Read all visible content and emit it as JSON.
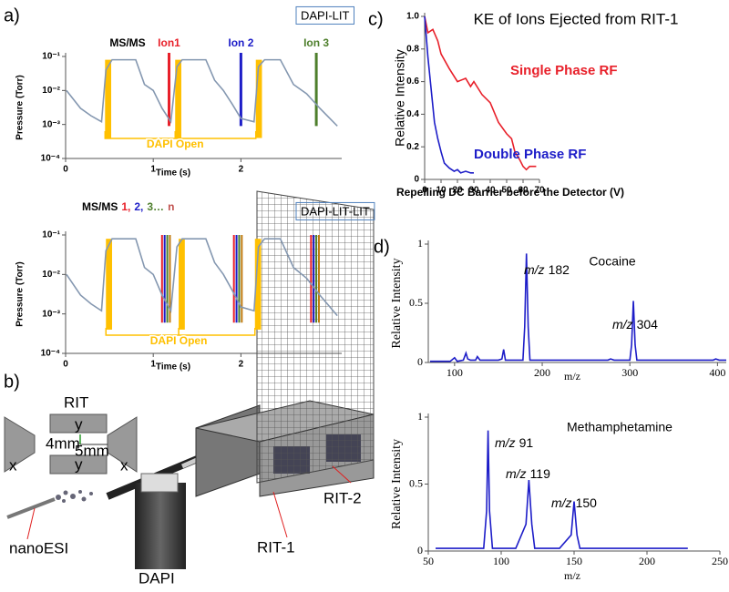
{
  "chart_data": [
    {
      "type": "line",
      "panel": "a)",
      "badge": "DAPI-LIT",
      "annotation": "MS/MS",
      "xlabel": "Time (s)",
      "ylabel": "Pressure (Torr)",
      "log_y": true,
      "xlim": [
        0,
        3.15
      ],
      "xticks": [
        0,
        1,
        2
      ],
      "ylim": [
        0.0001,
        0.1
      ],
      "yticks": [
        {
          "value": 0.0001,
          "label": "10⁻⁴"
        },
        {
          "value": 0.001,
          "label": "10⁻³"
        },
        {
          "value": 0.01,
          "label": "10⁻²"
        },
        {
          "value": 0.1,
          "label": "10⁻¹"
        }
      ],
      "color": "#8497b0",
      "x": [
        0.01,
        0.17,
        0.29,
        0.41,
        0.46,
        0.53,
        0.8,
        0.9,
        1.0,
        1.1,
        1.2,
        1.27,
        1.33,
        1.6,
        1.7,
        1.8,
        1.9,
        2.0,
        2.15,
        2.2,
        2.27,
        2.45,
        2.6,
        2.75,
        2.9,
        3.1
      ],
      "values": [
        0.01,
        0.003,
        0.0018,
        0.0012,
        0.04,
        0.08,
        0.08,
        0.015,
        0.01,
        0.003,
        0.0012,
        0.05,
        0.08,
        0.08,
        0.02,
        0.01,
        0.004,
        0.0015,
        0.0012,
        0.05,
        0.08,
        0.08,
        0.015,
        0.008,
        0.003,
        0.0009
      ],
      "pulses": {
        "label": "DAPI Open",
        "color": "#ffc000",
        "x": [
          0.45,
          1.25,
          2.17
        ],
        "width": 0.07
      },
      "markers": [
        {
          "name": "Ion1",
          "color": "#e8202a",
          "x": 1.18
        },
        {
          "name": "Ion 2",
          "color": "#1d1dc8",
          "x": 2.0
        },
        {
          "name": "Ion 3",
          "color": "#4e7f2c",
          "x": 2.86
        }
      ]
    },
    {
      "type": "line",
      "badge": "DAPI-LIT-LIT",
      "xlabel": "Time (s)",
      "ylabel": "Pressure (Torr)",
      "log_y": true,
      "xlim": [
        0,
        3.15
      ],
      "xticks": [
        0,
        1,
        2
      ],
      "ylim": [
        0.0001,
        0.1
      ],
      "yticks": [
        {
          "value": 0.0001,
          "label": "10⁻⁴"
        },
        {
          "value": 0.001,
          "label": "10⁻³"
        },
        {
          "value": 0.01,
          "label": "10⁻²"
        },
        {
          "value": 0.1,
          "label": "10⁻¹"
        }
      ],
      "color": "#8497b0",
      "x": [
        0.01,
        0.17,
        0.29,
        0.41,
        0.46,
        0.53,
        0.8,
        0.9,
        1.0,
        1.1,
        1.2,
        1.27,
        1.33,
        1.6,
        1.7,
        1.8,
        1.9,
        2.0,
        2.15,
        2.2,
        2.27,
        2.45,
        2.6,
        2.75,
        2.9,
        3.1
      ],
      "values": [
        0.01,
        0.003,
        0.0018,
        0.0012,
        0.04,
        0.08,
        0.08,
        0.015,
        0.01,
        0.003,
        0.0012,
        0.05,
        0.08,
        0.08,
        0.02,
        0.01,
        0.004,
        0.0015,
        0.0012,
        0.05,
        0.08,
        0.08,
        0.015,
        0.008,
        0.003,
        0.0009
      ],
      "pulses": {
        "label": "DAPI Open",
        "color": "#ffc000",
        "x": [
          0.46,
          1.29,
          2.16
        ],
        "width": 0.07
      },
      "label_parts": [
        {
          "text": "MS/MS",
          "color": "#000000"
        },
        {
          "text": "1,",
          "color": "#e8202a"
        },
        {
          "text": "2,",
          "color": "#1d1dc8"
        },
        {
          "text": "3…",
          "color": "#4e7f2c"
        },
        {
          "text": "n",
          "color": "#c0504d"
        }
      ],
      "marker_sets": [
        {
          "color": "#e8202a",
          "x": [
            1.1,
            1.92,
            2.8
          ]
        },
        {
          "color": "#1d1dc8",
          "x": [
            1.13,
            1.95,
            2.83
          ]
        },
        {
          "color": "#4e7f2c",
          "x": [
            1.16,
            1.98,
            2.86
          ]
        },
        {
          "color": "#c07a10",
          "x": [
            1.19,
            2.01,
            2.89
          ]
        }
      ]
    },
    {
      "type": "line",
      "panel": "c)",
      "title": "KE of Ions Ejected from RIT-1",
      "xlabel": "Repelling DC Barrier before the Detector (V)",
      "ylabel": "Relative Intensity",
      "xlim": [
        0,
        70
      ],
      "xticks": [
        0,
        10,
        20,
        30,
        40,
        50,
        60,
        70
      ],
      "ylim": [
        0,
        1
      ],
      "yticks": [
        0,
        0.2,
        0.4,
        0.6,
        0.8,
        {
          "value": 1,
          "label": "1.0"
        }
      ],
      "series": [
        {
          "name": "Single Phase RF",
          "color": "#e8202a",
          "x": [
            0,
            2,
            5,
            8,
            10,
            15,
            20,
            25,
            28,
            30,
            35,
            40,
            45,
            50,
            53,
            55,
            58,
            60,
            62,
            64,
            68
          ],
          "values": [
            1,
            0.9,
            0.92,
            0.85,
            0.77,
            0.68,
            0.6,
            0.62,
            0.57,
            0.6,
            0.52,
            0.47,
            0.35,
            0.28,
            0.25,
            0.17,
            0.12,
            0.08,
            0.06,
            0.08,
            0.08
          ]
        },
        {
          "name": "Double Phase RF",
          "color": "#1d1dc8",
          "x": [
            0,
            2,
            4,
            6,
            8,
            10,
            12,
            15,
            18,
            20,
            22,
            25,
            28,
            30
          ],
          "values": [
            1,
            0.75,
            0.55,
            0.35,
            0.25,
            0.17,
            0.1,
            0.07,
            0.05,
            0.06,
            0.04,
            0.05,
            0.04,
            0.04
          ]
        }
      ]
    },
    {
      "type": "line",
      "panel": "d)",
      "title": "Cocaine",
      "xlabel": "m/z",
      "ylabel": "Relative Intensity",
      "xlim": [
        70,
        410
      ],
      "xticks": [
        100,
        200,
        300,
        400
      ],
      "ylim": [
        0,
        1
      ],
      "yticks": [
        0,
        0.5,
        1
      ],
      "color": "#1d1dc8",
      "x": [
        72,
        95,
        100,
        103,
        110,
        113,
        115,
        118,
        124,
        126,
        129,
        135,
        150,
        154,
        156,
        158,
        165,
        178,
        180,
        182,
        184,
        186,
        200,
        240,
        275,
        278,
        282,
        300,
        302,
        304,
        306,
        308,
        330,
        395,
        398,
        402,
        410
      ],
      "values": [
        0.01,
        0.01,
        0.04,
        0.01,
        0.02,
        0.08,
        0.03,
        0.02,
        0.02,
        0.05,
        0.02,
        0.02,
        0.02,
        0.03,
        0.11,
        0.02,
        0.02,
        0.02,
        0.3,
        0.92,
        0.3,
        0.02,
        0.02,
        0.02,
        0.02,
        0.03,
        0.02,
        0.02,
        0.15,
        0.52,
        0.15,
        0.02,
        0.02,
        0.02,
        0.03,
        0.02,
        0.02
      ],
      "peak_labels": [
        {
          "unit": "m/z",
          "mz": 182
        },
        {
          "unit": "m/z",
          "mz": 304
        }
      ]
    },
    {
      "type": "line",
      "title": "Methamphetamine",
      "xlabel": "m/z",
      "ylabel": "Relative Intensity",
      "xlim": [
        50,
        250
      ],
      "xticks": [
        50,
        100,
        150,
        200,
        250
      ],
      "ylim": [
        0,
        1
      ],
      "yticks": [
        0,
        0.5,
        1
      ],
      "color": "#1d1dc8",
      "x": [
        55,
        70,
        88,
        90,
        91,
        92,
        94,
        110,
        117,
        119,
        121,
        123,
        140,
        148,
        150,
        152,
        154,
        175,
        200,
        228
      ],
      "values": [
        0.02,
        0.02,
        0.02,
        0.3,
        0.9,
        0.3,
        0.02,
        0.02,
        0.2,
        0.53,
        0.2,
        0.02,
        0.02,
        0.12,
        0.37,
        0.12,
        0.02,
        0.02,
        0.02,
        0.02
      ],
      "peak_labels": [
        {
          "unit": "m/z",
          "mz": 91
        },
        {
          "unit": "m/z",
          "mz": 119
        },
        {
          "unit": "m/z",
          "mz": 150
        }
      ]
    }
  ],
  "diagram": {
    "panel": "b)",
    "labels": {
      "rit": "RIT",
      "y_top": "y",
      "y_bottom": "y",
      "x_left": "x",
      "x_right": "x",
      "gap_y": "4mm",
      "gap_x": "5mm",
      "source": "nanoESI",
      "dapi": "DAPI",
      "rit1": "RIT-1",
      "rit2": "RIT-2"
    }
  }
}
